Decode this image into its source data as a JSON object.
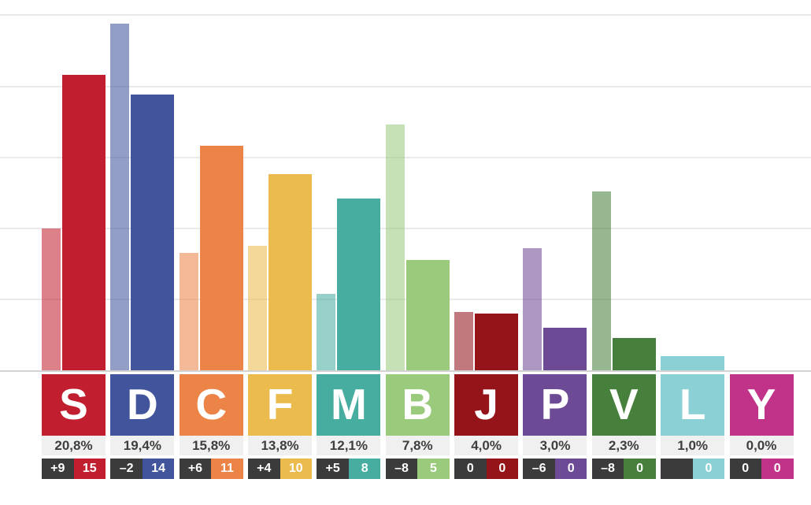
{
  "chart_data": {
    "type": "bar",
    "description": "Election result bar chart: two bars per party (previous result = translucent, current result = solid), party letter badge, vote share percentage, seat change and seat count boxes",
    "unit": "%",
    "y_axis": {
      "min": 0,
      "max": 26,
      "gridlines_pct": [
        5,
        10,
        15,
        20,
        25
      ],
      "tick_labels_visible": false
    },
    "legend_visible": false,
    "series": [
      {
        "id": "previous",
        "style": "translucent"
      },
      {
        "id": "current",
        "style": "solid"
      }
    ],
    "parties": [
      {
        "letter": "S",
        "color": "#c11f30",
        "current_pct": 20.8,
        "previous_pct": 10.0,
        "pct_label": "20,8%",
        "seat_change": "+9",
        "seats": "15"
      },
      {
        "letter": "D",
        "color": "#41549c",
        "current_pct": 19.4,
        "previous_pct": 24.4,
        "pct_label": "19,4%",
        "seat_change": "–2",
        "seats": "14"
      },
      {
        "letter": "C",
        "color": "#ec8447",
        "current_pct": 15.8,
        "previous_pct": 8.3,
        "pct_label": "15,8%",
        "seat_change": "+6",
        "seats": "11"
      },
      {
        "letter": "F",
        "color": "#ecbb4d",
        "current_pct": 13.8,
        "previous_pct": 8.8,
        "pct_label": "13,8%",
        "seat_change": "+4",
        "seats": "10"
      },
      {
        "letter": "M",
        "color": "#47ada0",
        "current_pct": 12.1,
        "previous_pct": 5.4,
        "pct_label": "12,1%",
        "seat_change": "+5",
        "seats": "8"
      },
      {
        "letter": "B",
        "color": "#9aca7c",
        "current_pct": 7.8,
        "previous_pct": 17.3,
        "pct_label": "7,8%",
        "seat_change": "–8",
        "seats": "5"
      },
      {
        "letter": "J",
        "color": "#94141a",
        "current_pct": 4.0,
        "previous_pct": 4.1,
        "pct_label": "4,0%",
        "seat_change": "0",
        "seats": "0"
      },
      {
        "letter": "P",
        "color": "#6d4a96",
        "current_pct": 3.0,
        "previous_pct": 8.6,
        "pct_label": "3,0%",
        "seat_change": "–6",
        "seats": "0"
      },
      {
        "letter": "V",
        "color": "#46803c",
        "current_pct": 2.3,
        "previous_pct": 12.6,
        "pct_label": "2,3%",
        "seat_change": "–8",
        "seats": "0"
      },
      {
        "letter": "L",
        "color": "#8bd0d4",
        "current_pct": 1.0,
        "previous_pct": null,
        "full_width_bar": true,
        "pct_label": "1,0%",
        "seat_change": "",
        "seats": "0"
      },
      {
        "letter": "Y",
        "color": "#c03388",
        "current_pct": 0.0,
        "previous_pct": 0.0,
        "pct_label": "0,0%",
        "seat_change": "0",
        "seats": "0"
      }
    ]
  },
  "styles": {
    "grid_color": "#eaeaea",
    "baseline_color": "#d2d2d2",
    "pct_row_bg": "#f0f0f0",
    "pct_text_color": "#3e3e3e",
    "change_box_bg": "#3b3b3b",
    "box_text_color": "#ffffff"
  }
}
